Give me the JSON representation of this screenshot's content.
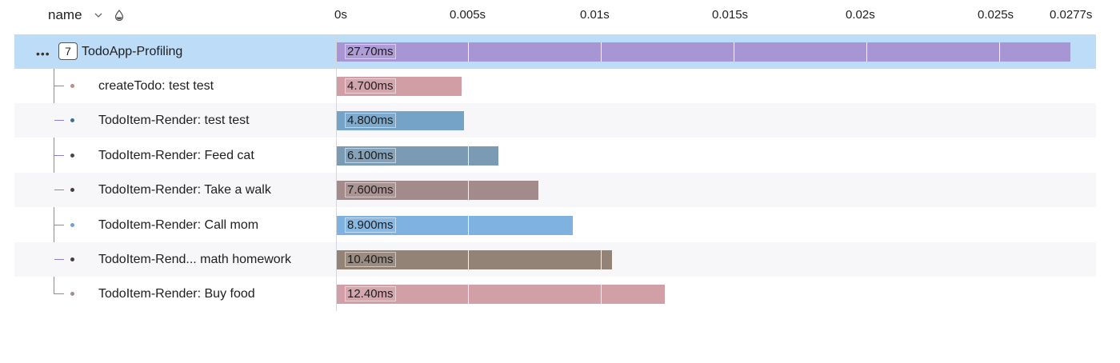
{
  "header": {
    "name_label": "name",
    "chevron_icon": "chevron-down-icon",
    "sort_icon": "drop-icon"
  },
  "axis": {
    "ticks": [
      "0s",
      "0.005s",
      "0.01s",
      "0.015s",
      "0.02s",
      "0.025s",
      "0.0277s"
    ]
  },
  "root": {
    "more_icon": "more-horizontal-icon",
    "child_count": "7",
    "name": "TodoApp-Profiling",
    "duration_label": "27.70ms",
    "duration_ms": 27.7,
    "color": "#a895d3"
  },
  "children": [
    {
      "name": "createTodo: test test",
      "duration_label": "4.700ms",
      "duration_ms": 4.7,
      "color": "#d29ea6",
      "dot": "#b98f8a"
    },
    {
      "name": "TodoItem-Render: test test",
      "duration_label": "4.800ms",
      "duration_ms": 4.8,
      "color": "#75a3c8",
      "dot": "#3f6f93"
    },
    {
      "name": "TodoItem-Render: Feed cat",
      "duration_label": "6.100ms",
      "duration_ms": 6.1,
      "color": "#7b9bb4",
      "dot": "#4a4a4a"
    },
    {
      "name": "TodoItem-Render: Take a walk",
      "duration_label": "7.600ms",
      "duration_ms": 7.6,
      "color": "#a48b8b",
      "dot": "#4a3f3f"
    },
    {
      "name": "TodoItem-Render: Call mom",
      "duration_label": "8.900ms",
      "duration_ms": 8.9,
      "color": "#7fb2e0",
      "dot": "#6f9ed8"
    },
    {
      "name": "TodoItem-Rend... math homework",
      "duration_label": "10.40ms",
      "duration_ms": 10.4,
      "color": "#938377",
      "dot": "#4a3f3f"
    },
    {
      "name": "TodoItem-Render: Buy food",
      "duration_label": "12.40ms",
      "duration_ms": 12.4,
      "color": "#d19fa6",
      "dot": "#a58f8f"
    }
  ]
}
